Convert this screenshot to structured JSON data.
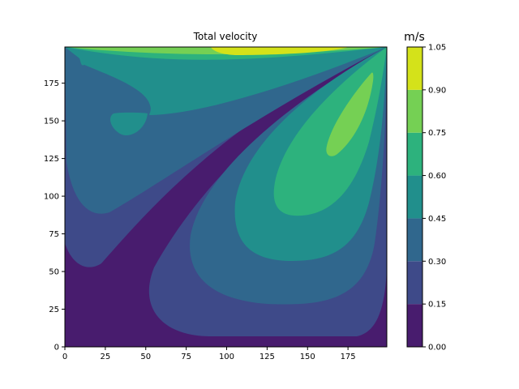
{
  "chart_data": {
    "type": "contourf",
    "title": "Total velocity",
    "xlabel": "",
    "ylabel": "",
    "xlim": [
      0,
      199
    ],
    "ylim": [
      0,
      199
    ],
    "x_ticks": [
      0,
      25,
      50,
      75,
      100,
      125,
      150,
      175
    ],
    "y_ticks": [
      0,
      25,
      50,
      75,
      100,
      125,
      150,
      175
    ],
    "colorbar": {
      "label": "m/s",
      "levels": [
        0.0,
        0.15,
        0.3,
        0.45,
        0.6,
        0.75,
        0.9,
        1.05
      ],
      "tick_labels": [
        "0.00",
        "0.15",
        "0.30",
        "0.45",
        "0.60",
        "0.75",
        "0.90",
        "1.05"
      ],
      "colors": [
        "#481c6e",
        "#3e4a89",
        "#30678d",
        "#218f8c",
        "#2db27d",
        "#75d054",
        "#d4e21a"
      ],
      "bands": [
        {
          "level": "0.00–0.15",
          "color": "#481c6e"
        },
        {
          "level": "0.15–0.30",
          "color": "#3e4a89"
        },
        {
          "level": "0.30–0.45",
          "color": "#30678d"
        },
        {
          "level": "0.45–0.60",
          "color": "#218f8c"
        },
        {
          "level": "0.60–0.75",
          "color": "#2db27d"
        },
        {
          "level": "0.75–0.90",
          "color": "#75d054"
        },
        {
          "level": "0.90–1.05",
          "color": "#d4e21a"
        }
      ]
    },
    "field": {
      "description_key": "lid-driven-cavity",
      "features": [
        {
          "name": "lid-jet",
          "band": "0.90–1.05",
          "near": {
            "x": 100,
            "y": 197
          }
        },
        {
          "name": "main-vortex-core",
          "band": "0.75–0.90",
          "near": {
            "x": 175,
            "y": 155
          }
        },
        {
          "name": "left-eddy-core",
          "band": "0.45–0.60",
          "near": {
            "x": 40,
            "y": 148
          }
        },
        {
          "name": "stagnation-diagonal",
          "band": "0.00–0.15",
          "near": {
            "x": 80,
            "y": 80
          }
        }
      ]
    }
  }
}
